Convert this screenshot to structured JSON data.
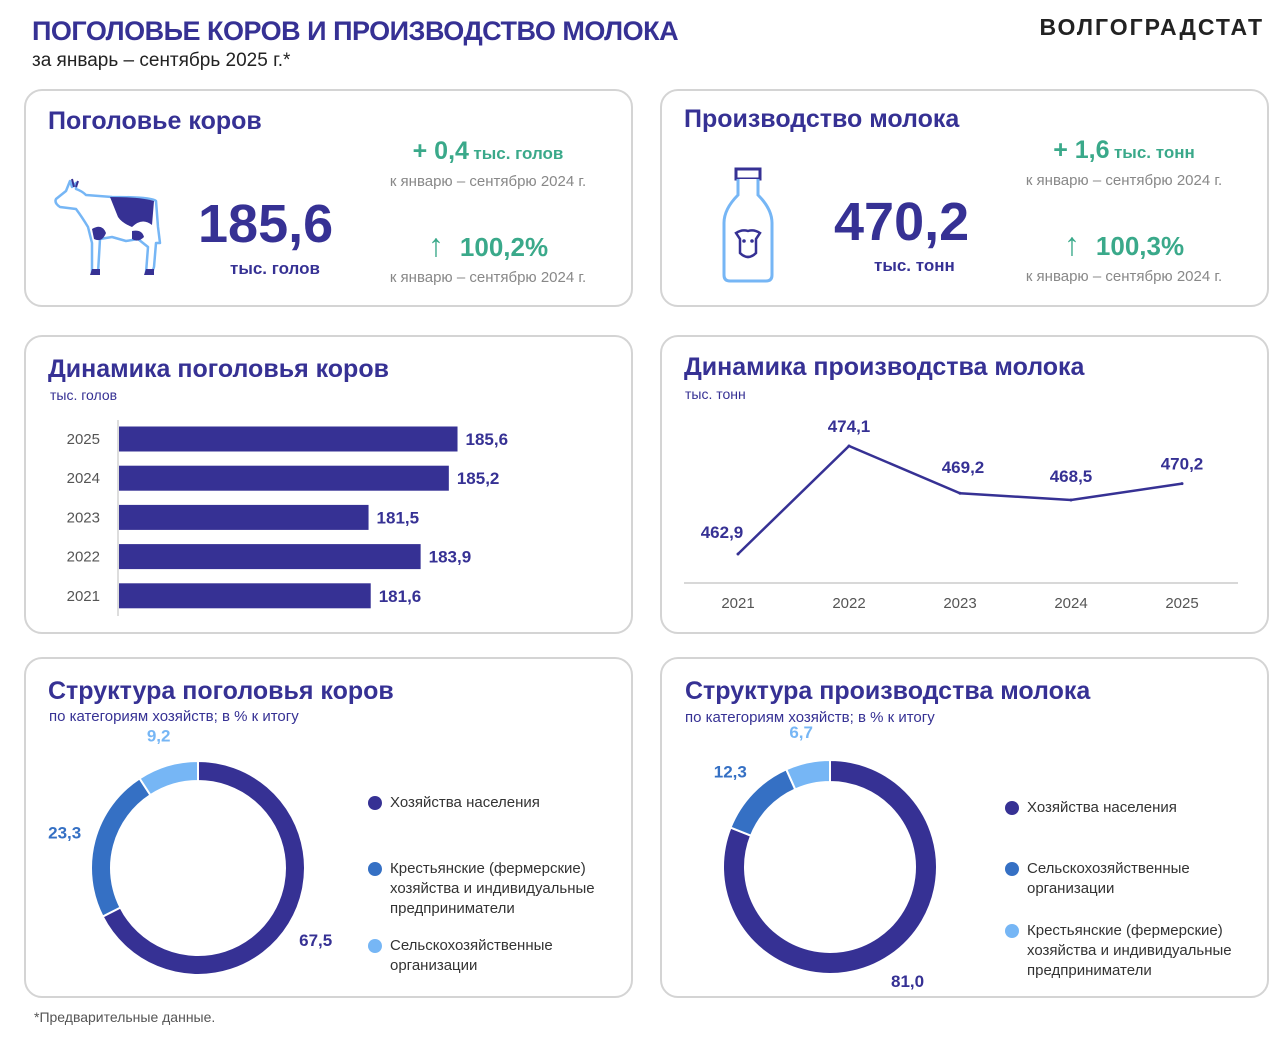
{
  "header": {
    "title": "ПОГОЛОВЬЕ КОРОВ И ПРОИЗВОДСТВО МОЛОКА",
    "subtitle": "за январь – сентябрь 2025 г.*",
    "logo": "ВОЛГОГРАДСТАТ"
  },
  "colors": {
    "primary": "#363194",
    "medium": "#3570c4",
    "light": "#76b6f5",
    "positive": "#3aa98a"
  },
  "cows_kpi": {
    "title": "Поголовье коров",
    "value": "185,6",
    "unit": "тыс. голов",
    "delta_value": "+ 0,4",
    "delta_unit": "тыс. голов",
    "compare_text": "к январю – сентябрю 2024 г.",
    "percent": "100,2%",
    "percent_arrow": "↑",
    "icon": "cow-icon"
  },
  "milk_kpi": {
    "title": "Производство молока",
    "value": "470,2",
    "unit": "тыс. тонн",
    "delta_value": "+ 1,6",
    "delta_unit": "тыс. тонн",
    "compare_text": "к январю – сентябрю 2024 г.",
    "percent": "100,3%",
    "percent_arrow": "↑",
    "icon": "milk-bottle-icon"
  },
  "chart_data": [
    {
      "type": "bar",
      "orientation": "horizontal",
      "title": "Динамика поголовья коров",
      "subtitle": "тыс. голов",
      "categories": [
        "2025",
        "2024",
        "2023",
        "2022",
        "2021"
      ],
      "values": [
        185.6,
        185.2,
        181.5,
        183.9,
        181.6
      ],
      "labels": [
        "185,6",
        "185,2",
        "181,5",
        "183,9",
        "181,6"
      ],
      "xlim": [
        170,
        190
      ],
      "color": "#363194"
    },
    {
      "type": "line",
      "title": "Динамика производства молока",
      "subtitle": "тыс. тонн",
      "x": [
        "2021",
        "2022",
        "2023",
        "2024",
        "2025"
      ],
      "values": [
        462.9,
        474.1,
        469.2,
        468.5,
        470.2
      ],
      "labels": [
        "462,9",
        "474,1",
        "469,2",
        "468,5",
        "470,2"
      ],
      "ylim": [
        460,
        476
      ],
      "color": "#363194"
    },
    {
      "type": "pie",
      "donut": true,
      "title": "Структура поголовья коров",
      "subtitle": "по категориям хозяйств; в % к итогу",
      "slices": [
        {
          "name": "Хозяйства населения",
          "value": 67.5,
          "label": "67,5",
          "color": "#363194"
        },
        {
          "name": "Крестьянские (фермерские) хозяйства и индивидуальные предприниматели",
          "value": 23.3,
          "label": "23,3",
          "color": "#3570c4"
        },
        {
          "name": "Сельскохозяйственные организации",
          "value": 9.2,
          "label": "9,2",
          "color": "#76b6f5"
        }
      ]
    },
    {
      "type": "pie",
      "donut": true,
      "title": "Структура производства молока",
      "subtitle": "по категориям хозяйств; в % к итогу",
      "slices": [
        {
          "name": "Хозяйства населения",
          "value": 81.0,
          "label": "81,0",
          "color": "#363194"
        },
        {
          "name": "Сельскохозяйственные организации",
          "value": 12.3,
          "label": "12,3",
          "color": "#3570c4"
        },
        {
          "name": "Крестьянские (фермерские) хозяйства и индивидуальные предприниматели",
          "value": 6.7,
          "label": "6,7",
          "color": "#76b6f5"
        }
      ]
    }
  ],
  "footnote": "*Предварительные данные."
}
